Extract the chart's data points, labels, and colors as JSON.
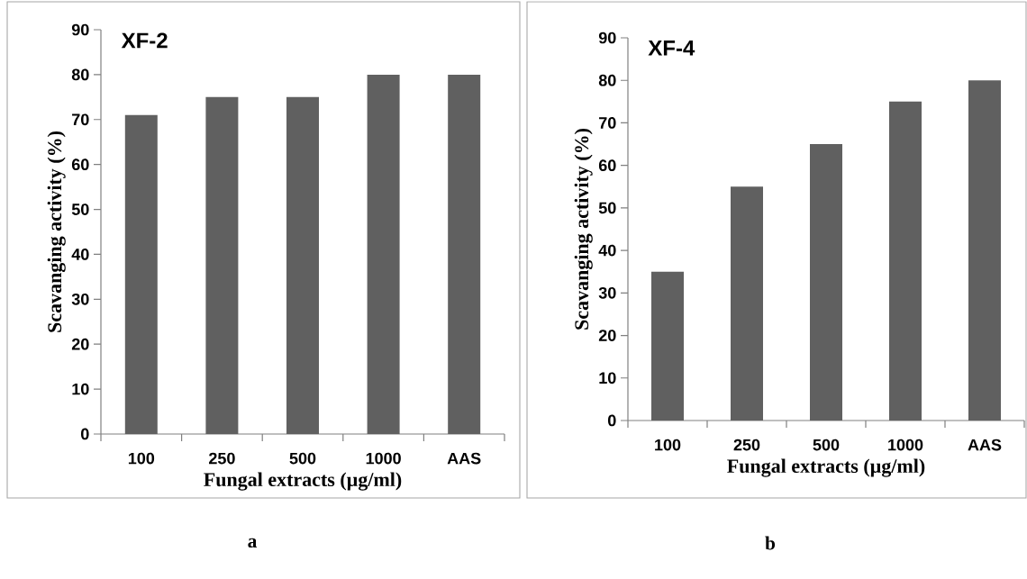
{
  "chart_data": [
    {
      "type": "bar",
      "title": "XF-2",
      "xlabel": "Fungal extracts (µg/ml)",
      "ylabel": "Scavanging activity (%)",
      "categories": [
        "100",
        "250",
        "500",
        "1000",
        "AAS"
      ],
      "values": [
        71,
        75,
        75,
        80,
        80
      ],
      "color": "#606060",
      "ylim": [
        0,
        90
      ],
      "yticks": [
        0,
        10,
        20,
        30,
        40,
        50,
        60,
        70,
        80,
        90
      ],
      "annotations": [
        "a"
      ]
    },
    {
      "type": "bar",
      "title": "XF-4",
      "xlabel": "Fungal extracts (µg/ml)",
      "ylabel": "Scavanging activity (%)",
      "categories": [
        "100",
        "250",
        "500",
        "1000",
        "AAS"
      ],
      "values": [
        35,
        55,
        65,
        75,
        80
      ],
      "color": "#606060",
      "ylim": [
        0,
        90
      ],
      "yticks": [
        0,
        10,
        20,
        30,
        40,
        50,
        60,
        70,
        80,
        90
      ],
      "annotations": [
        "b"
      ]
    }
  ]
}
